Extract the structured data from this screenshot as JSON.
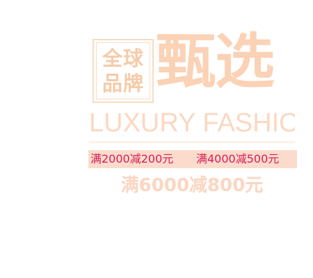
{
  "badge": {
    "line1": "全球",
    "line2": "品牌"
  },
  "title": "甄选",
  "subtitle": "LUXURY FASHION",
  "offers": {
    "left": "满2000减200元",
    "right": "满4000减500元",
    "big": "满6000减800元"
  },
  "colors": {
    "primary_peach": "#fbd2b5",
    "accent_pink": "#d61c57",
    "bar_background": "#fbdccc"
  }
}
